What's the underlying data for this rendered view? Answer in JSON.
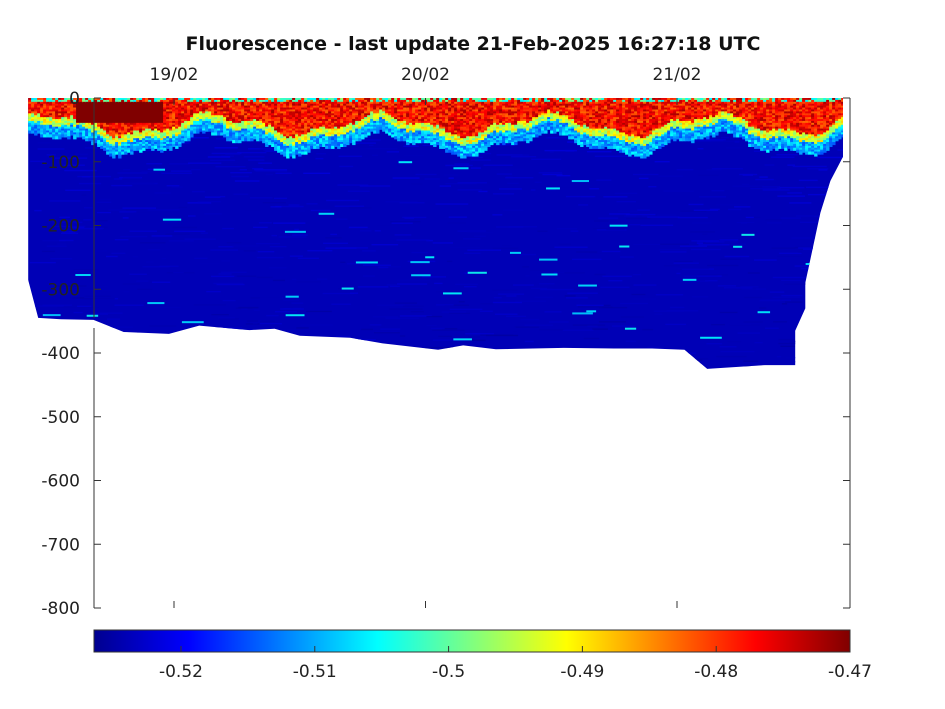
{
  "chart_data": {
    "type": "heatmap",
    "title": "Fluorescence - last update 21-Feb-2025 16:27:18 UTC",
    "xlabel": "",
    "ylabel": "",
    "x_ticks": [
      "19/02",
      "20/02",
      "21/02"
    ],
    "x_tick_days": [
      1,
      2,
      3
    ],
    "xlim_days": [
      0.7,
      3.7
    ],
    "x_axis_position": "top",
    "y_ticks": [
      0,
      -100,
      -200,
      -300,
      -400,
      -500,
      -600,
      -700,
      -800
    ],
    "ylim": [
      -800,
      0
    ],
    "grid": false,
    "colormap": "jet",
    "colorbar": {
      "position": "bottom",
      "range": [
        -0.5265,
        -0.47
      ],
      "ticks": [
        -0.52,
        -0.51,
        -0.5,
        -0.49,
        -0.48,
        -0.47
      ],
      "tick_labels": [
        "-0.52",
        "-0.51",
        "-0.5",
        "-0.49",
        "-0.48",
        "-0.47"
      ]
    },
    "data_extent": {
      "x_start_day": 0.42,
      "x_end_day": 3.66,
      "bottom_depth_profile": [
        [
          0.42,
          -285
        ],
        [
          0.46,
          -345
        ],
        [
          0.55,
          -347
        ],
        [
          0.68,
          -348
        ],
        [
          0.8,
          -367
        ],
        [
          0.98,
          -370
        ],
        [
          1.1,
          -357
        ],
        [
          1.3,
          -364
        ],
        [
          1.4,
          -362
        ],
        [
          1.5,
          -373
        ],
        [
          1.7,
          -376
        ],
        [
          1.83,
          -385
        ],
        [
          2.05,
          -395
        ],
        [
          2.15,
          -388
        ],
        [
          2.28,
          -394
        ],
        [
          2.55,
          -392
        ],
        [
          2.75,
          -393
        ],
        [
          2.9,
          -393
        ],
        [
          3.03,
          -395
        ],
        [
          3.12,
          -425
        ],
        [
          3.35,
          -419
        ],
        [
          3.47,
          -419
        ],
        [
          3.47,
          -365
        ],
        [
          3.51,
          -330
        ],
        [
          3.51,
          -290
        ],
        [
          3.57,
          -180
        ],
        [
          3.61,
          -130
        ],
        [
          3.66,
          -92
        ],
        [
          3.66,
          0
        ]
      ],
      "surface_layer": {
        "depth_range": [
          0,
          -60
        ],
        "value_range": [
          -0.49,
          -0.47
        ],
        "dark_red_patch_days": [
          0.6,
          0.95
        ]
      },
      "deep_layer_value": -0.5235
    }
  }
}
